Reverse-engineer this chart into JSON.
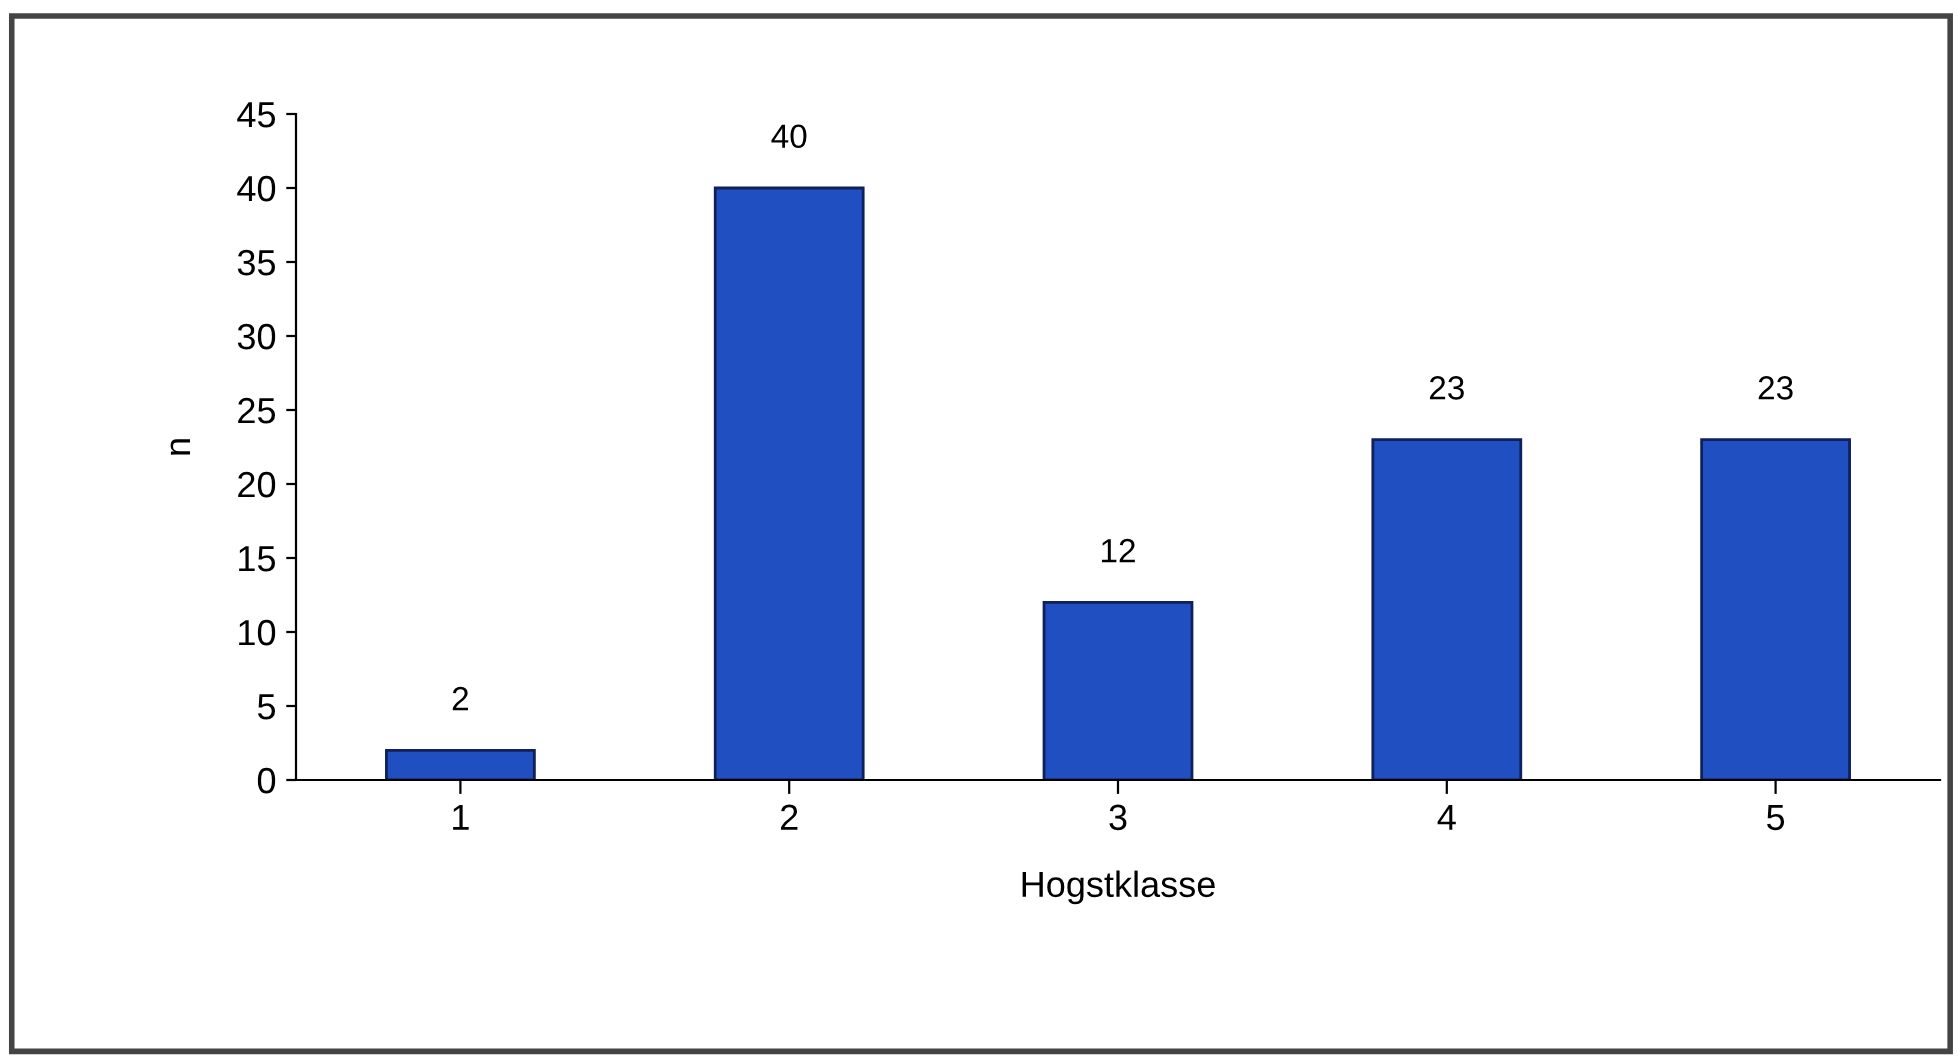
{
  "chart_data": {
    "type": "bar",
    "xlabel": "Hogstklasse",
    "ylabel": "n",
    "categories": [
      "1",
      "2",
      "3",
      "4",
      "5"
    ],
    "values": [
      2,
      40,
      12,
      23,
      23
    ],
    "color": "#1f4fc0",
    "ylim": [
      0,
      45
    ],
    "yticks": [
      0,
      5,
      10,
      15,
      20,
      25,
      30,
      35,
      40,
      45
    ],
    "data_labels": true,
    "grid": false,
    "legend": false
  }
}
